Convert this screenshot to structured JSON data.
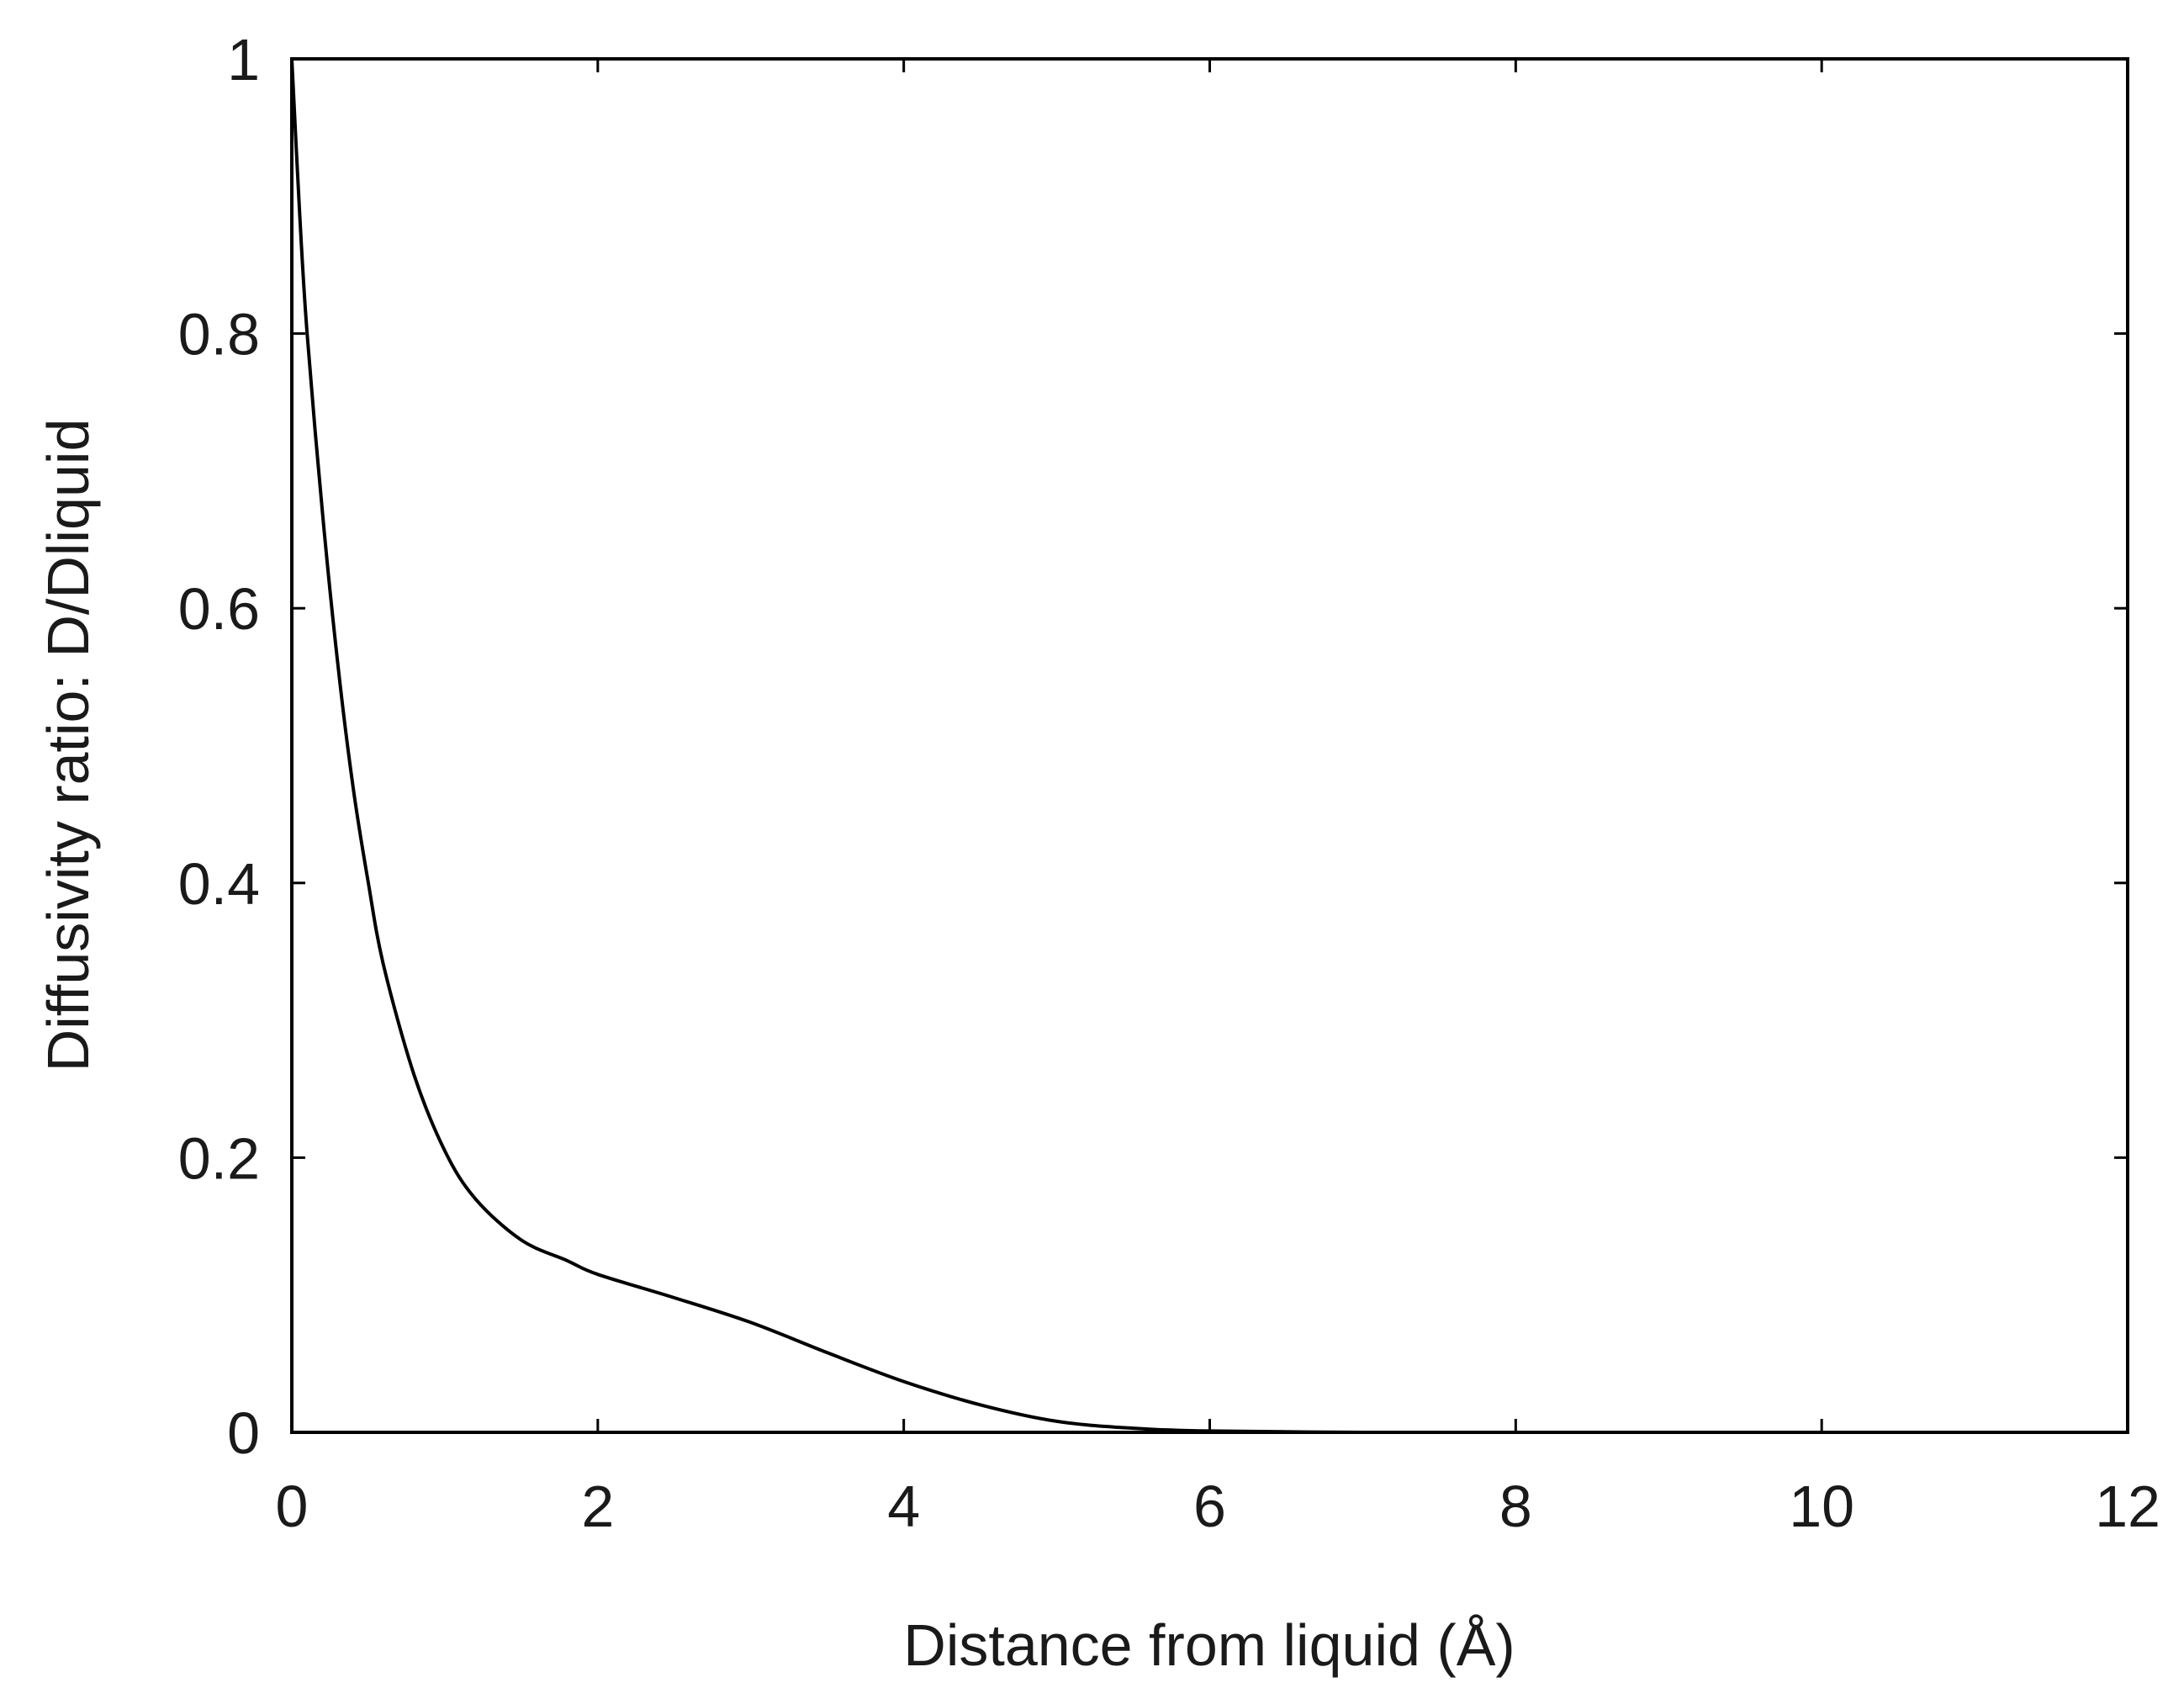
{
  "chart_data": {
    "type": "line",
    "title": "",
    "xlabel": "Distance from liquid (Å)",
    "ylabel": "Diffusivity ratio: D/Dliquid",
    "xlim": [
      0,
      12
    ],
    "ylim": [
      0,
      1
    ],
    "xticks": [
      0,
      2,
      4,
      6,
      8,
      10,
      12
    ],
    "yticks": [
      0,
      0.2,
      0.4,
      0.6,
      0.8,
      1
    ],
    "xtick_labels": [
      "0",
      "2",
      "4",
      "6",
      "8",
      "10",
      "12"
    ],
    "ytick_labels": [
      "0",
      "0.2",
      "0.4",
      "0.6",
      "0.8",
      "1"
    ],
    "grid": false,
    "legend": false,
    "series": [
      {
        "color": "#000000",
        "x": [
          0,
          0.05,
          0.1,
          0.2,
          0.3,
          0.4,
          0.5,
          0.6,
          0.8,
          1.0,
          1.2,
          1.5,
          1.8,
          2.0,
          2.5,
          3.0,
          3.5,
          4.0,
          4.5,
          5.0,
          5.5,
          6.0,
          7.0,
          8.0,
          9.0,
          10.0,
          11.0,
          12.0
        ],
        "y": [
          1.0,
          0.89,
          0.8,
          0.67,
          0.56,
          0.47,
          0.4,
          0.34,
          0.26,
          0.205,
          0.17,
          0.14,
          0.125,
          0.115,
          0.098,
          0.08,
          0.058,
          0.037,
          0.02,
          0.008,
          0.003,
          0.001,
          0.0,
          0.0,
          0.0,
          0.0,
          0.0,
          0.0
        ]
      }
    ]
  }
}
